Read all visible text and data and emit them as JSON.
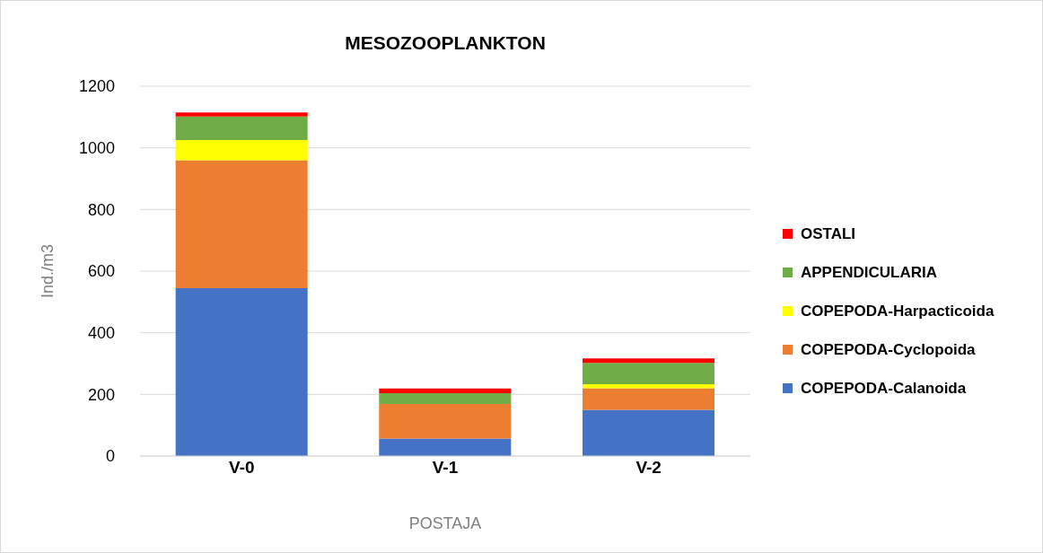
{
  "chart_data": {
    "type": "bar",
    "title": "MESOZOOPLANKTON",
    "xlabel": "POSTAJA",
    "ylabel": "Ind./m3",
    "categories": [
      "V-0",
      "V-1",
      "V-2"
    ],
    "stacked": true,
    "series": [
      {
        "name": "COPEPODA-Calanoida",
        "color": "#4472c4",
        "values": [
          545,
          57,
          150
        ]
      },
      {
        "name": "COPEPODA-Cyclopoida",
        "color": "#ed7d31",
        "values": [
          415,
          112,
          70
        ]
      },
      {
        "name": "COPEPODA-Harpacticoida",
        "color": "#ffff00",
        "values": [
          65,
          0,
          13
        ]
      },
      {
        "name": "APPENDICULARIA",
        "color": "#70ad47",
        "values": [
          77,
          35,
          69
        ]
      },
      {
        "name": "OSTALI",
        "color": "#ff0000",
        "values": [
          13,
          15,
          15
        ]
      }
    ],
    "ylim": [
      0,
      1200
    ],
    "yticks": [
      0,
      200,
      400,
      600,
      800,
      1000,
      1200
    ],
    "grid": "y",
    "legend": "right"
  }
}
